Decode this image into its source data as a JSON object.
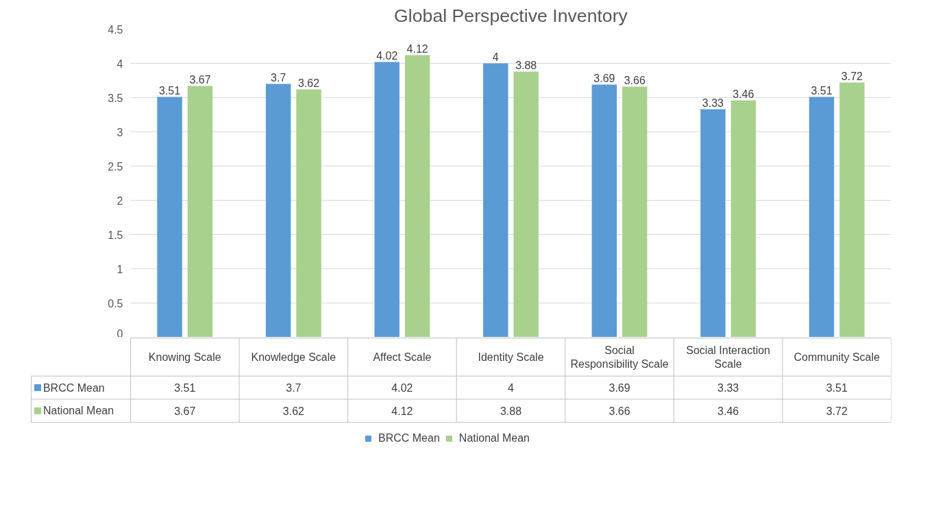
{
  "chart_data": {
    "type": "bar",
    "title": "Global Perspective Inventory",
    "categories": [
      "Knowing Scale",
      "Knowledge Scale",
      "Affect Scale",
      "Identity Scale",
      "Social Responsibility Scale",
      "Social Interaction Scale",
      "Community Scale"
    ],
    "series": [
      {
        "name": "BRCC Mean",
        "color": "#5b9bd5",
        "values": [
          3.51,
          3.7,
          4.02,
          4,
          3.69,
          3.33,
          3.51
        ],
        "value_labels": [
          "3.51",
          "3.7",
          "4.02",
          "4",
          "3.69",
          "3.33",
          "3.51"
        ]
      },
      {
        "name": "National Mean",
        "color": "#a9d18e",
        "values": [
          3.67,
          3.62,
          4.12,
          3.88,
          3.66,
          3.46,
          3.72
        ],
        "value_labels": [
          "3.67",
          "3.62",
          "4.12",
          "3.88",
          "3.66",
          "3.46",
          "3.72"
        ]
      }
    ],
    "ylim": [
      0,
      4.5
    ],
    "yticks": [
      0,
      0.5,
      1,
      1.5,
      2,
      2.5,
      3,
      3.5,
      4,
      4.5
    ],
    "grid": "y",
    "data_labels": true,
    "legend": "bottom"
  }
}
